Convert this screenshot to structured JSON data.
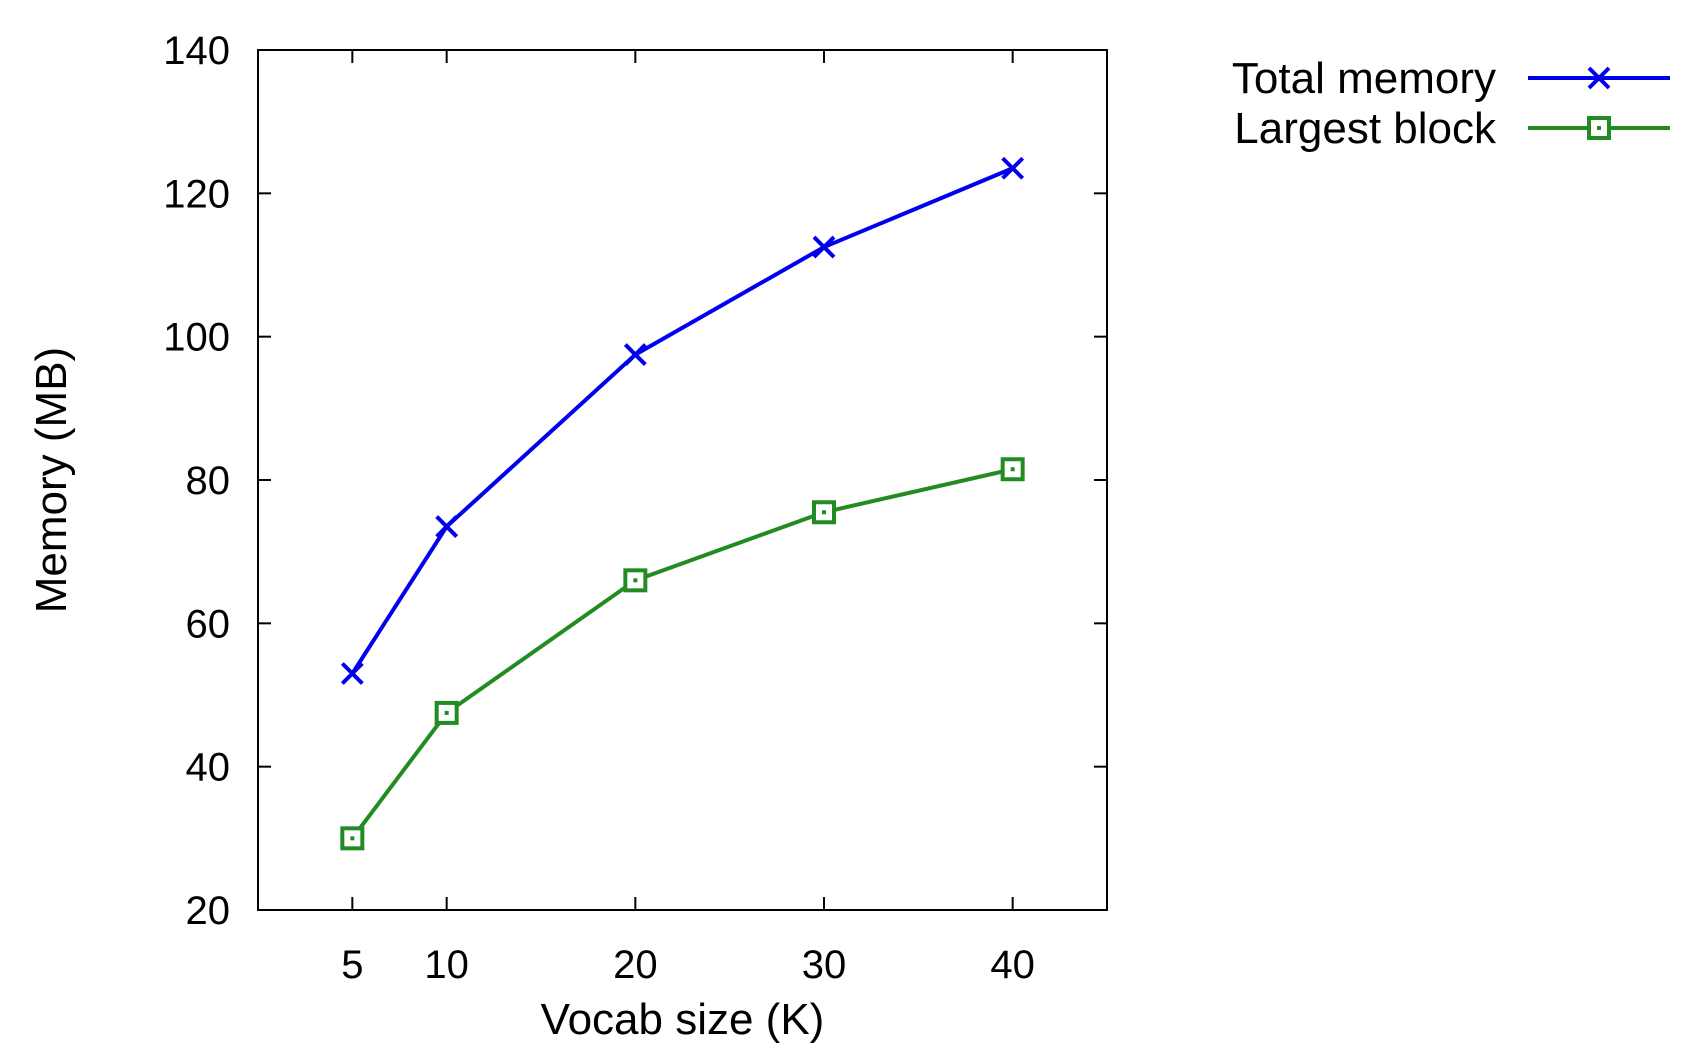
{
  "chart_data": {
    "type": "line",
    "title": "",
    "xlabel": "Vocab size (K)",
    "ylabel": "Memory (MB)",
    "x": [
      5,
      10,
      20,
      30,
      40
    ],
    "xticks": [
      "5",
      "10",
      "20",
      "30",
      "40"
    ],
    "yticks": [
      "20",
      "40",
      "60",
      "80",
      "100",
      "120",
      "140"
    ],
    "xlim": [
      0,
      45
    ],
    "ylim": [
      20,
      140
    ],
    "grid": false,
    "legend_position": "outside-top-right",
    "series": [
      {
        "name": "Total memory",
        "values": [
          53,
          73.5,
          97.5,
          112.5,
          123.5
        ],
        "color": "#0000ee",
        "marker": "x"
      },
      {
        "name": "Largest block",
        "values": [
          30,
          47.5,
          66,
          75.5,
          81.5
        ],
        "color": "#228b22",
        "marker": "square"
      }
    ]
  }
}
